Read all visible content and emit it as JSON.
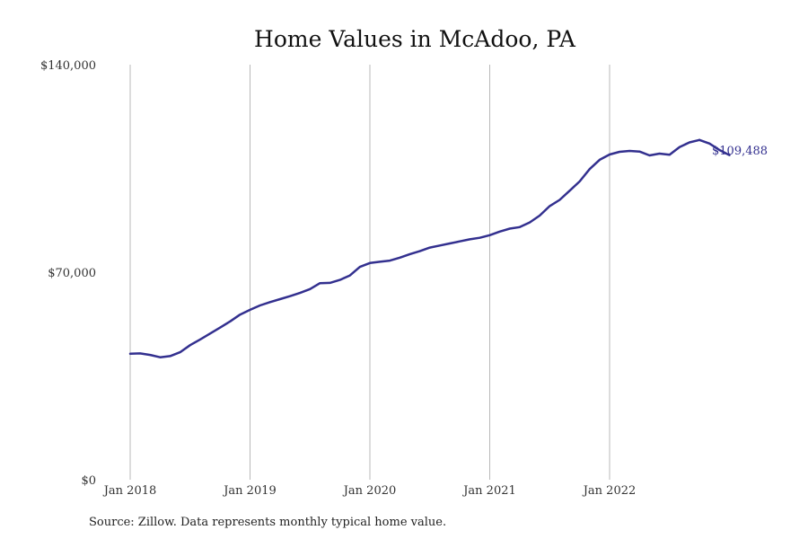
{
  "chart_data": {
    "type": "line",
    "title": "Home Values in McAdoo, PA",
    "xlabel": "",
    "ylabel": "",
    "ylim": [
      0,
      140000
    ],
    "yticks": [
      {
        "value": 0,
        "label": "$0"
      },
      {
        "value": 70000,
        "label": "$70,000"
      },
      {
        "value": 140000,
        "label": "$140,000"
      }
    ],
    "xticks": [
      {
        "value": "2018-01",
        "label": "Jan 2018"
      },
      {
        "value": "2019-01",
        "label": "Jan 2019"
      },
      {
        "value": "2020-01",
        "label": "Jan 2020"
      },
      {
        "value": "2021-01",
        "label": "Jan 2021"
      },
      {
        "value": "2022-01",
        "label": "Jan 2022"
      }
    ],
    "grid": "vertical",
    "color": "#33308f",
    "end_label": "$109,488",
    "source": "Source: Zillow. Data represents monthly typical home value.",
    "series": [
      {
        "x": [
          "2018-01",
          "2018-02",
          "2018-03",
          "2018-04",
          "2018-05",
          "2018-06",
          "2018-07",
          "2018-08",
          "2018-09",
          "2018-10",
          "2018-11",
          "2018-12",
          "2019-01",
          "2019-02",
          "2019-03",
          "2019-04",
          "2019-05",
          "2019-06",
          "2019-07",
          "2019-08",
          "2019-09",
          "2019-10",
          "2019-11",
          "2019-12",
          "2020-01",
          "2020-02",
          "2020-03",
          "2020-04",
          "2020-05",
          "2020-06",
          "2020-07",
          "2020-08",
          "2020-09",
          "2020-10",
          "2020-11",
          "2020-12",
          "2021-01",
          "2021-02",
          "2021-03",
          "2021-04",
          "2021-05",
          "2021-06",
          "2021-07",
          "2021-08",
          "2021-09",
          "2021-10",
          "2021-11",
          "2021-12",
          "2022-01",
          "2022-02",
          "2022-03",
          "2022-04",
          "2022-05",
          "2022-06",
          "2022-07",
          "2022-08",
          "2022-09",
          "2022-10"
        ],
        "values": [
          42500,
          42600,
          42100,
          41300,
          41700,
          43000,
          45400,
          47300,
          49300,
          51300,
          53400,
          55700,
          57300,
          58800,
          59900,
          60900,
          61900,
          63000,
          64300,
          66300,
          66400,
          67400,
          68900,
          71800,
          73100,
          73500,
          73900,
          74900,
          76100,
          77100,
          78300,
          79000,
          79700,
          80400,
          81100,
          81600,
          82500,
          83700,
          84700,
          85200,
          86800,
          89100,
          92300,
          94400,
          97500,
          100600,
          104800,
          107900,
          109700,
          110600,
          110900,
          110700,
          109400,
          110000,
          109600,
          112200,
          113800,
          114600
        ]
      },
      {
        "x": [
          "2022-10",
          "2022-11",
          "2022-12",
          "2023-01"
        ],
        "values": [
          114600,
          113400,
          111200,
          109488
        ]
      }
    ]
  }
}
